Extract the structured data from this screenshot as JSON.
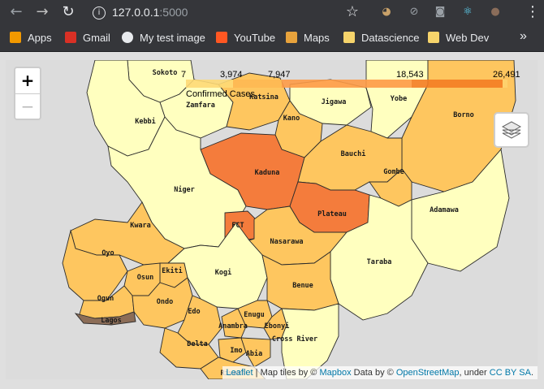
{
  "browser": {
    "url_host": "127.0.0.1",
    "url_port": ":5000",
    "back_glyph": "←",
    "forward_glyph": "→",
    "reload_glyph": "↻",
    "info_glyph": "i",
    "star_glyph": "☆",
    "menu_glyph": "⋮",
    "extensions": [
      {
        "icon": "owl-extension-icon",
        "color": "#c9a26a",
        "glyph": "◕"
      },
      {
        "icon": "block-extension-icon",
        "color": "#9aa0a6",
        "glyph": "⊘"
      },
      {
        "icon": "camera-extension-icon",
        "color": "#9aa0a6",
        "glyph": "◙"
      },
      {
        "icon": "react-extension-icon",
        "color": "#61dafb",
        "glyph": "⚛"
      },
      {
        "icon": "profile-avatar-icon",
        "color": "#8a6d5a",
        "glyph": "●"
      }
    ]
  },
  "bookmarks": {
    "items": [
      {
        "label": "Apps",
        "icon": "apps-grid-icon",
        "color": "#f29900"
      },
      {
        "label": "Gmail",
        "icon": "gmail-icon",
        "color": "#d93025"
      },
      {
        "label": "My test image",
        "icon": "globe-icon",
        "color": "#e8eaed"
      },
      {
        "label": "YouTube",
        "icon": "youtube-icon",
        "color": "#ff5722"
      },
      {
        "label": "Maps",
        "icon": "maps-pin-icon",
        "color": "#e8a33c"
      },
      {
        "label": "Datascience",
        "icon": "folder-icon",
        "color": "#f6d46b"
      },
      {
        "label": "Web Dev",
        "icon": "folder-icon",
        "color": "#f6d46b"
      }
    ],
    "overflow_glyph": "»"
  },
  "map": {
    "zoom_in": "+",
    "zoom_out": "−",
    "legend": {
      "title": "Confirmed Cases",
      "breaks": [
        "3,974",
        "7,947",
        "18,543",
        "26,491"
      ],
      "first_break": "7",
      "colors": [
        "#ffffbf",
        "#fed976",
        "#feb24c",
        "#fd8d3c",
        "#f16913",
        "#8c6d57"
      ]
    },
    "states": [
      {
        "name": "Sokoto",
        "color": "#ffffbf"
      },
      {
        "name": "Zamfara",
        "color": "#ffffbf"
      },
      {
        "name": "Katsina",
        "color": "#fec65f"
      },
      {
        "name": "Jigawa",
        "color": "#ffffbf"
      },
      {
        "name": "Yobe",
        "color": "#ffffbf"
      },
      {
        "name": "Borno",
        "color": "#fec65f"
      },
      {
        "name": "Kebbi",
        "color": "#ffffbf"
      },
      {
        "name": "Kano",
        "color": "#fec65f"
      },
      {
        "name": "Kaduna",
        "color": "#f47c3c"
      },
      {
        "name": "Bauchi",
        "color": "#fec65f"
      },
      {
        "name": "Gombe",
        "color": "#fec65f"
      },
      {
        "name": "Niger",
        "color": "#ffffbf"
      },
      {
        "name": "Adamawa",
        "color": "#ffffbf"
      },
      {
        "name": "FCT",
        "color": "#f47c3c"
      },
      {
        "name": "Plateau",
        "color": "#f47c3c"
      },
      {
        "name": "Kwara",
        "color": "#fec65f"
      },
      {
        "name": "Nasarawa",
        "color": "#fec65f"
      },
      {
        "name": "Oyo",
        "color": "#fec65f"
      },
      {
        "name": "Ekiti",
        "color": "#fec65f"
      },
      {
        "name": "Kogi",
        "color": "#ffffbf"
      },
      {
        "name": "Osun",
        "color": "#fec65f"
      },
      {
        "name": "Taraba",
        "color": "#ffffbf"
      },
      {
        "name": "Benue",
        "color": "#fec65f"
      },
      {
        "name": "Ogun",
        "color": "#fec65f"
      },
      {
        "name": "Ondo",
        "color": "#fec65f"
      },
      {
        "name": "Edo",
        "color": "#fec65f"
      },
      {
        "name": "Lagos",
        "color": "#8c6d57"
      },
      {
        "name": "Enugu",
        "color": "#fec65f"
      },
      {
        "name": "Anambra",
        "color": "#fec65f"
      },
      {
        "name": "Ebonyi",
        "color": "#fec65f"
      },
      {
        "name": "Delta",
        "color": "#fec65f"
      },
      {
        "name": "Cross River",
        "color": "#ffffbf"
      },
      {
        "name": "Imo",
        "color": "#fec65f"
      },
      {
        "name": "Abia",
        "color": "#fec65f"
      },
      {
        "name": "Rivers",
        "color": "#fec65f"
      }
    ],
    "attribution": {
      "leaflet": "Leaflet",
      "sep": " | ",
      "tiles": "Map tiles by © ",
      "mapbox": "Mapbox",
      "data": " Data by © ",
      "osm": "OpenStreetMap",
      "under": ", under ",
      "license": "CC BY SA",
      "end": "."
    }
  }
}
